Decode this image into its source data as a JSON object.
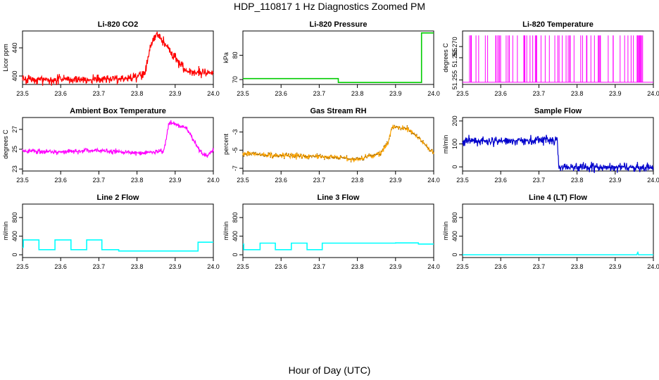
{
  "figure": {
    "title": "HDP_110817  1 Hz Diagnostics Zoomed PM",
    "xlabel": "Hour of Day (UTC)"
  },
  "chart_data": [
    {
      "id": "co2",
      "type": "line",
      "title": "Li-820 CO2",
      "ylabel": "Licor ppm",
      "color": "#ff0000",
      "noise": 1.2,
      "seed": 1,
      "xlim": [
        23.5,
        24.0
      ],
      "ylim": [
        388,
        464
      ],
      "xticks": [
        "23.5",
        "23.6",
        "23.7",
        "23.8",
        "23.9",
        "24.0"
      ],
      "yticks": [
        "400",
        "440"
      ],
      "x": [
        23.5,
        23.52,
        23.55,
        23.6,
        23.65,
        23.7,
        23.75,
        23.8,
        23.82,
        23.835,
        23.85,
        23.87,
        23.9,
        23.93,
        23.955,
        23.96,
        23.965,
        24.0
      ],
      "y": [
        394,
        396,
        394,
        395,
        394,
        395,
        396,
        398,
        404,
        440,
        461,
        448,
        425,
        407,
        405,
        405,
        404,
        404
      ],
      "spikes": [
        {
          "x": 23.962,
          "y0": 400,
          "y1": 414
        }
      ]
    },
    {
      "id": "pressure",
      "type": "step",
      "title": "Li-820 Pressure",
      "ylabel": "kPa",
      "color": "#00cc00",
      "noise": 0,
      "seed": 2,
      "xlim": [
        23.5,
        24.0
      ],
      "ylim": [
        68,
        90
      ],
      "xticks": [
        "23.5",
        "23.6",
        "23.7",
        "23.8",
        "23.9",
        "24.0"
      ],
      "yticks": [
        "70",
        "80"
      ],
      "x": [
        23.5,
        23.75,
        23.958,
        23.968,
        24.0
      ],
      "y": [
        70.4,
        68.8,
        68.8,
        89.2,
        89.2
      ]
    },
    {
      "id": "licor-temp",
      "type": "flicker",
      "title": "Li-820 Temperature",
      "ylabel": "degrees C",
      "color": "#ff00ff",
      "seed": 3,
      "xlim": [
        23.5,
        24.0
      ],
      "ylim": [
        51.253,
        51.277
      ],
      "xticks": [
        "23.5",
        "23.6",
        "23.7",
        "23.8",
        "23.9",
        "24.0"
      ],
      "yticks": [
        "51.255",
        "51.265",
        "51.270"
      ],
      "low": 51.254,
      "high": 51.275,
      "spikes": 70
    },
    {
      "id": "ambient-temp",
      "type": "line",
      "title": "Ambient Box Temperature",
      "ylabel": "degrees C",
      "color": "#ff00ff",
      "noise": 0.6,
      "seed": 4,
      "xlim": [
        23.5,
        24.0
      ],
      "ylim": [
        22.8,
        28.2
      ],
      "xticks": [
        "23.5",
        "23.6",
        "23.7",
        "23.8",
        "23.9",
        "24.0"
      ],
      "yticks": [
        "23",
        "25",
        "27"
      ],
      "x": [
        23.5,
        23.6,
        23.7,
        23.8,
        23.87,
        23.883,
        23.89,
        23.93,
        23.95,
        23.97,
        23.985,
        24.0
      ],
      "y": [
        24.8,
        24.7,
        24.9,
        24.6,
        24.8,
        27.5,
        27.7,
        27.1,
        25.8,
        24.5,
        24.3,
        25.0
      ]
    },
    {
      "id": "rh",
      "type": "line",
      "title": "Gas Stream RH",
      "ylabel": "percent",
      "color": "#ffa500",
      "noise": 0.7,
      "seed": 5,
      "dots": true,
      "xlim": [
        23.5,
        24.0
      ],
      "ylim": [
        -7.3,
        -1.4
      ],
      "xticks": [
        "23.5",
        "23.6",
        "23.7",
        "23.8",
        "23.9",
        "24.0"
      ],
      "yticks": [
        "-7",
        "-5",
        "-3"
      ],
      "x": [
        23.5,
        23.6,
        23.7,
        23.8,
        23.86,
        23.88,
        23.89,
        23.93,
        23.96,
        23.99,
        24.0
      ],
      "y": [
        -5.4,
        -5.6,
        -5.7,
        -6.0,
        -5.4,
        -4.3,
        -2.4,
        -2.6,
        -3.6,
        -5.0,
        -5.2
      ]
    },
    {
      "id": "sample-flow",
      "type": "line",
      "title": "Sample Flow",
      "ylabel": "ml/min",
      "color": "#0000cc",
      "noise": 1.2,
      "seed": 6,
      "xlim": [
        23.5,
        24.0
      ],
      "ylim": [
        -18,
        215
      ],
      "xticks": [
        "23.5",
        "23.6",
        "23.7",
        "23.8",
        "23.9",
        "24.0"
      ],
      "yticks": [
        "0",
        "100",
        "200"
      ],
      "x": [
        23.5,
        23.6,
        23.65,
        23.7,
        23.748,
        23.752,
        23.8,
        23.9,
        24.0
      ],
      "y": [
        112,
        113,
        116,
        117,
        117,
        -2,
        -2,
        0,
        -4
      ]
    },
    {
      "id": "line2-flow",
      "type": "step",
      "title": "Line 2 Flow",
      "ylabel": "ml/min",
      "color": "#00ffff",
      "noise": 0,
      "seed": 7,
      "xlim": [
        23.5,
        24.0
      ],
      "ylim": [
        -60,
        1090
      ],
      "xticks": [
        "23.5",
        "23.6",
        "23.7",
        "23.8",
        "23.9",
        "24.0"
      ],
      "yticks": [
        "0",
        "400",
        "800"
      ],
      "x": [
        23.5,
        23.502,
        23.543,
        23.585,
        23.627,
        23.668,
        23.708,
        23.752,
        23.96,
        24.0
      ],
      "y": [
        160,
        320,
        110,
        320,
        110,
        320,
        110,
        80,
        270,
        270
      ]
    },
    {
      "id": "line3-flow",
      "type": "step",
      "title": "Line 3 Flow",
      "ylabel": "ml/min",
      "color": "#00ffff",
      "noise": 0,
      "seed": 8,
      "xlim": [
        23.5,
        24.0
      ],
      "ylim": [
        -60,
        1090
      ],
      "xticks": [
        "23.5",
        "23.6",
        "23.7",
        "23.8",
        "23.9",
        "24.0"
      ],
      "yticks": [
        "0",
        "400",
        "800"
      ],
      "x": [
        23.5,
        23.502,
        23.545,
        23.585,
        23.627,
        23.668,
        23.708,
        23.9,
        23.96,
        24.0
      ],
      "y": [
        230,
        110,
        250,
        110,
        250,
        110,
        250,
        255,
        230,
        230
      ]
    },
    {
      "id": "line4-flow",
      "type": "line",
      "title": "Line 4 (LT) Flow",
      "ylabel": "ml/min",
      "color": "#00ffff",
      "noise": 0,
      "seed": 9,
      "xlim": [
        23.5,
        24.0
      ],
      "ylim": [
        -60,
        1090
      ],
      "xticks": [
        "23.5",
        "23.6",
        "23.7",
        "23.8",
        "23.9",
        "24.0"
      ],
      "yticks": [
        "0",
        "400",
        "800"
      ],
      "x": [
        23.5,
        23.95,
        23.957,
        23.959,
        23.961,
        24.0
      ],
      "y": [
        0,
        0,
        0,
        60,
        0,
        0
      ]
    }
  ]
}
